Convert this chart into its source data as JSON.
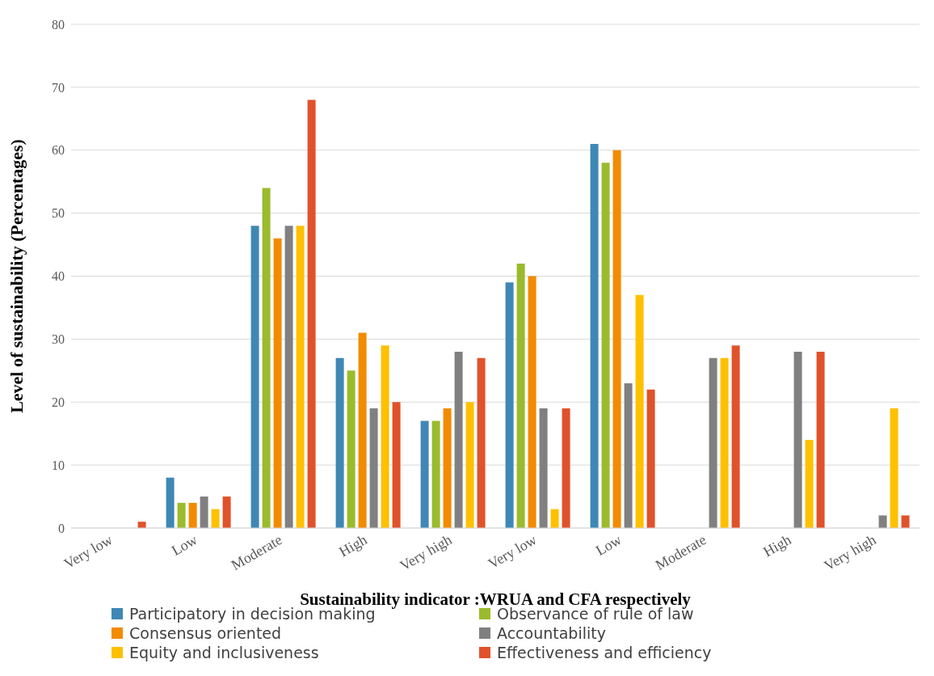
{
  "chart_data": {
    "type": "bar",
    "xlabel": "Sustainability indicator :WRUA and CFA respectively",
    "ylabel": "Level of sustainability (Percentages)",
    "categories": [
      "Very low",
      "Low",
      "Moderate",
      "High",
      "Very high",
      "Very low",
      "Low",
      "Moderate",
      "High",
      "Very high"
    ],
    "series": [
      {
        "name": "Participatory in decision making",
        "color": "#3f87b5",
        "values": [
          0,
          8,
          48,
          27,
          17,
          39,
          61,
          0,
          0,
          0
        ]
      },
      {
        "name": "Observance of rule of law",
        "color": "#9bbb2d",
        "values": [
          0,
          4,
          54,
          25,
          17,
          42,
          58,
          0,
          0,
          0
        ]
      },
      {
        "name": "Consensus oriented",
        "color": "#f28b00",
        "values": [
          0,
          4,
          46,
          31,
          19,
          40,
          60,
          0,
          0,
          0
        ]
      },
      {
        "name": "Accountability",
        "color": "#808080",
        "values": [
          0,
          5,
          48,
          19,
          28,
          19,
          23,
          27,
          28,
          2
        ]
      },
      {
        "name": "Equity and inclusiveness",
        "color": "#ffc000",
        "values": [
          0,
          3,
          48,
          29,
          20,
          3,
          37,
          27,
          14,
          19
        ]
      },
      {
        "name": "Effectiveness and efficiency",
        "color": "#e0522b",
        "values": [
          1,
          5,
          68,
          20,
          27,
          19,
          22,
          29,
          28,
          2
        ]
      }
    ],
    "ylim": [
      0,
      80
    ],
    "yticks": [
      0,
      10,
      20,
      30,
      40,
      50,
      60,
      70,
      80
    ],
    "grid": "y",
    "legend": "bottom"
  }
}
